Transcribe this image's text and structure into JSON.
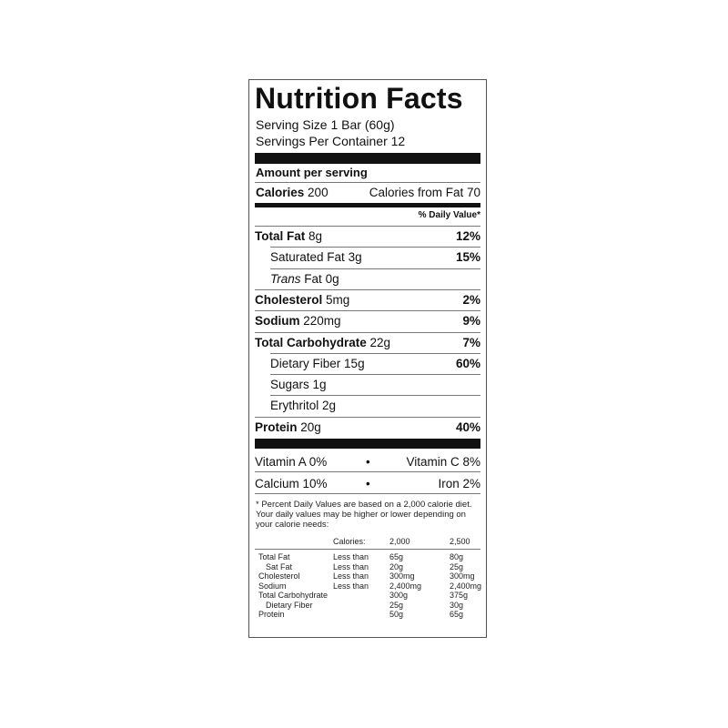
{
  "title": "Nutrition Facts",
  "serving_size": "Serving Size 1 Bar (60g)",
  "servings_per_container": "Servings Per Container 12",
  "amount_per_serving": "Amount per serving",
  "calories": {
    "label": "Calories",
    "value": "200",
    "from_fat": "Calories from Fat 70"
  },
  "dv_header": "% Daily Value*",
  "nutrients": [
    {
      "name": "Total Fat",
      "amount": "8g",
      "dv": "12%",
      "bold": true,
      "indent": false
    },
    {
      "name": "Saturated Fat",
      "amount": "3g",
      "dv": "15%",
      "bold": false,
      "indent": true
    },
    {
      "name": "Trans",
      "name_rest": "Fat",
      "amount": "0g",
      "dv": "",
      "bold": false,
      "indent": true
    },
    {
      "name": "Cholesterol",
      "amount": "5mg",
      "dv": "2%",
      "bold": true,
      "indent": false
    },
    {
      "name": "Sodium",
      "amount": "220mg",
      "dv": "9%",
      "bold": true,
      "indent": false
    },
    {
      "name": "Total Carbohydrate",
      "amount": "22g",
      "dv": "7%",
      "bold": true,
      "indent": false
    },
    {
      "name": "Dietary Fiber",
      "amount": "15g",
      "dv": "60%",
      "bold": false,
      "indent": true
    },
    {
      "name": "Sugars",
      "amount": "1g",
      "dv": "",
      "bold": false,
      "indent": true
    },
    {
      "name": "Erythritol",
      "amount": "2g",
      "dv": "",
      "bold": false,
      "indent": true
    },
    {
      "name": "Protein",
      "amount": "20g",
      "dv": "40%",
      "bold": true,
      "indent": false
    }
  ],
  "vitamins": [
    {
      "left": "Vitamin A 0%",
      "right": "Vitamin C 8%"
    },
    {
      "left": "Calcium 10%",
      "right": "Iron 2%"
    }
  ],
  "bullet": "•",
  "footnote": "* Percent Daily Values are based on a 2,000 calorie diet. Your daily values may be higher or lower depending on your calorie needs:",
  "dv_table": {
    "header": [
      "",
      "Calories:",
      "2,000",
      "2,500"
    ],
    "rows": [
      [
        "Total Fat",
        "Less than",
        "65g",
        "80g"
      ],
      [
        "Sat Fat",
        "Less than",
        "20g",
        "25g"
      ],
      [
        "Cholesterol",
        "Less than",
        "300mg",
        "300mg"
      ],
      [
        "Sodium",
        "Less than",
        "2,400mg",
        "2,400mg"
      ],
      [
        "Total Carbohydrate",
        "",
        "300g",
        "375g"
      ],
      [
        "Dietary Fiber",
        "",
        "25g",
        "30g"
      ],
      [
        "Protein",
        "",
        "50g",
        "65g"
      ]
    ]
  }
}
